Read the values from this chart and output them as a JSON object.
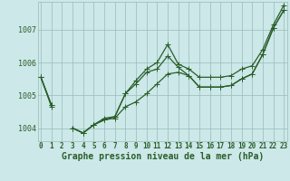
{
  "title": "Graphe pression niveau de la mer (hPa)",
  "bg_color": "#cce8e8",
  "grid_color": "#99bbbb",
  "line_color": "#2a5e2a",
  "marker_color": "#2a5e2a",
  "x_labels": [
    "0",
    "1",
    "2",
    "3",
    "4",
    "5",
    "6",
    "7",
    "8",
    "9",
    "10",
    "11",
    "12",
    "13",
    "14",
    "15",
    "16",
    "17",
    "18",
    "19",
    "20",
    "21",
    "22",
    "23"
  ],
  "series1": [
    1005.55,
    1004.7,
    null,
    1004.0,
    1003.85,
    1004.1,
    1004.25,
    1004.3,
    1004.65,
    1004.8,
    1005.05,
    1005.35,
    1005.65,
    1005.7,
    1005.6,
    1005.25,
    1005.25,
    1005.25,
    1005.3,
    1005.5,
    1005.65,
    1006.25,
    1007.05,
    1007.6
  ],
  "series2": [
    1005.55,
    1004.7,
    null,
    1004.0,
    1003.85,
    1004.1,
    1004.25,
    1004.35,
    1005.05,
    1005.35,
    1005.7,
    1005.8,
    1006.2,
    1005.85,
    1005.6,
    1005.25,
    1005.25,
    1005.25,
    1005.3,
    1005.5,
    1005.65,
    1006.25,
    1007.05,
    1007.6
  ],
  "series3": [
    1005.55,
    1004.65,
    null,
    1004.0,
    1003.85,
    1004.1,
    1004.3,
    1004.35,
    1005.05,
    1005.45,
    1005.8,
    1006.0,
    1006.55,
    1005.95,
    1005.8,
    1005.55,
    1005.55,
    1005.55,
    1005.6,
    1005.8,
    1005.9,
    1006.4,
    1007.15,
    1007.75
  ],
  "ylim": [
    1003.6,
    1007.85
  ],
  "yticks": [
    1004,
    1005,
    1006,
    1007
  ],
  "xlim": [
    -0.3,
    23.3
  ],
  "tick_fontsize": 5.5,
  "title_fontsize": 7.0
}
